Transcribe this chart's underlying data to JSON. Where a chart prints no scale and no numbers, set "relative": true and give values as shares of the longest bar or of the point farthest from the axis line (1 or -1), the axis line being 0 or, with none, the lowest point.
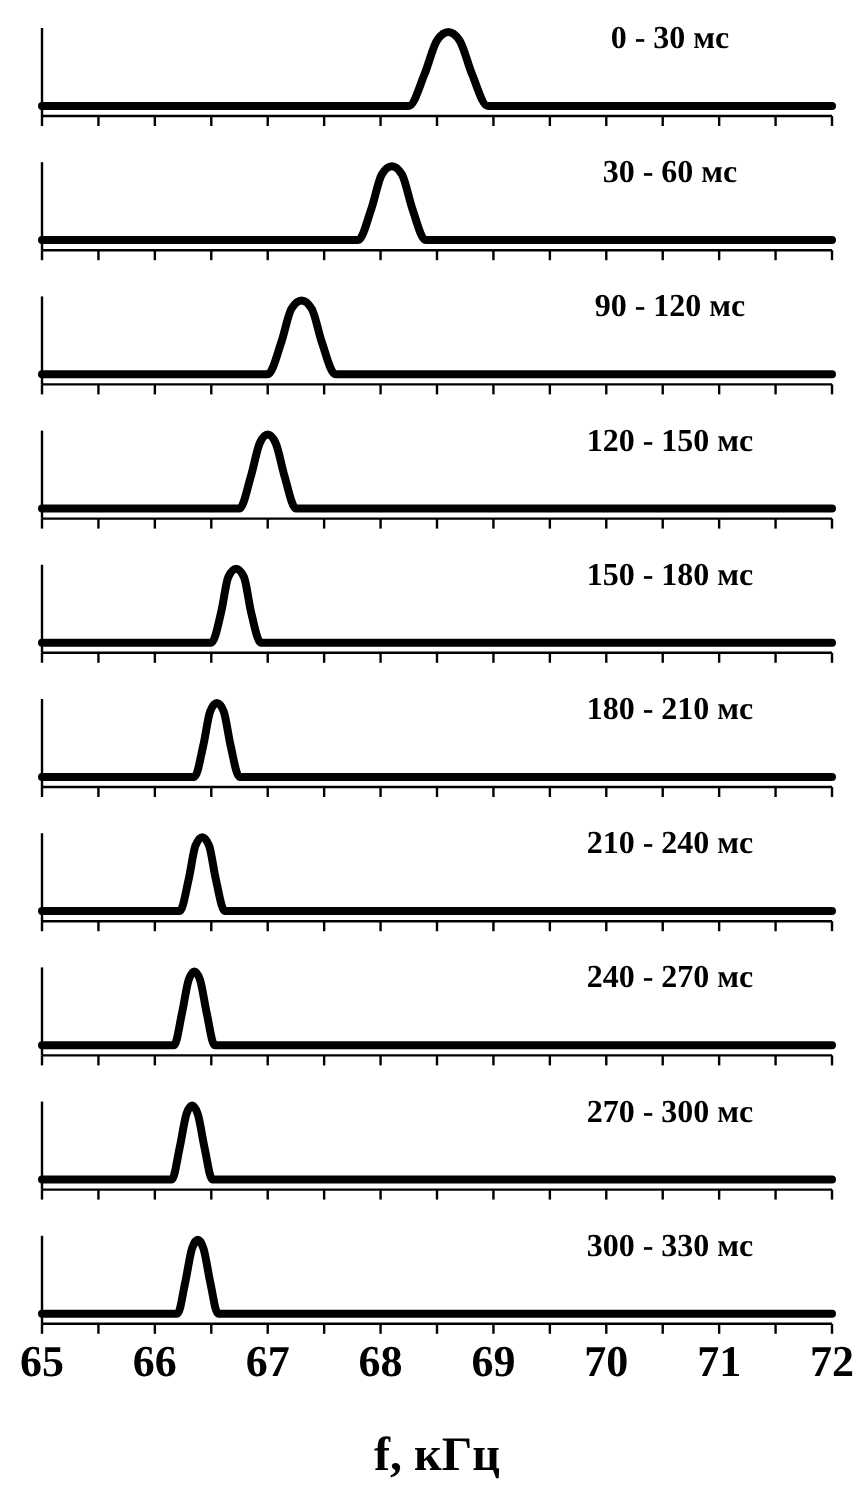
{
  "chart_data": [
    {
      "type": "line",
      "title": "0 - 30 мс",
      "relative": true,
      "xlim": [
        65,
        72
      ],
      "xticks": [
        65,
        {
          "value": 65.5,
          "label": null
        },
        66,
        {
          "value": 66.5,
          "label": null
        },
        67,
        {
          "value": 67.5,
          "label": null
        },
        68,
        {
          "value": 68.5,
          "label": null
        },
        69,
        {
          "value": 69.5,
          "label": null
        },
        70,
        {
          "value": 70.5,
          "label": null
        },
        71,
        {
          "value": 71.5,
          "label": null
        },
        72
      ],
      "tick_labels": false,
      "series": [
        {
          "color": "#000000",
          "x": [
            65,
            68.25,
            68.39,
            68.5,
            68.6,
            68.7,
            68.81,
            68.95,
            72
          ],
          "values": [
            0.12,
            0.12,
            0.5,
            0.9,
            1,
            0.9,
            0.5,
            0.12,
            0.12
          ]
        }
      ]
    },
    {
      "type": "line",
      "title": "30 - 60 мс",
      "relative": true,
      "xlim": [
        65,
        72
      ],
      "xticks": [
        65,
        {
          "value": 65.5,
          "label": null
        },
        66,
        {
          "value": 66.5,
          "label": null
        },
        67,
        {
          "value": 67.5,
          "label": null
        },
        68,
        {
          "value": 68.5,
          "label": null
        },
        69,
        {
          "value": 69.5,
          "label": null
        },
        70,
        {
          "value": 70.5,
          "label": null
        },
        71,
        {
          "value": 71.5,
          "label": null
        },
        72
      ],
      "tick_labels": false,
      "series": [
        {
          "color": "#000000",
          "x": [
            65,
            67.8,
            67.92,
            68.01,
            68.1,
            68.19,
            68.28,
            68.4,
            72
          ],
          "values": [
            0.12,
            0.12,
            0.5,
            0.9,
            1,
            0.9,
            0.5,
            0.12,
            0.12
          ]
        }
      ]
    },
    {
      "type": "line",
      "title": "90 - 120 мс",
      "relative": true,
      "xlim": [
        65,
        72
      ],
      "xticks": [
        65,
        {
          "value": 65.5,
          "label": null
        },
        66,
        {
          "value": 66.5,
          "label": null
        },
        67,
        {
          "value": 67.5,
          "label": null
        },
        68,
        {
          "value": 68.5,
          "label": null
        },
        69,
        {
          "value": 69.5,
          "label": null
        },
        70,
        {
          "value": 70.5,
          "label": null
        },
        71,
        {
          "value": 71.5,
          "label": null
        },
        72
      ],
      "tick_labels": false,
      "series": [
        {
          "color": "#000000",
          "x": [
            65,
            67.0,
            67.12,
            67.21,
            67.3,
            67.39,
            67.48,
            67.6,
            72
          ],
          "values": [
            0.12,
            0.12,
            0.5,
            0.9,
            1,
            0.9,
            0.5,
            0.12,
            0.12
          ]
        }
      ]
    },
    {
      "type": "line",
      "title": "120 - 150 мс",
      "relative": true,
      "xlim": [
        65,
        72
      ],
      "xticks": [
        65,
        {
          "value": 65.5,
          "label": null
        },
        66,
        {
          "value": 66.5,
          "label": null
        },
        67,
        {
          "value": 67.5,
          "label": null
        },
        68,
        {
          "value": 68.5,
          "label": null
        },
        69,
        {
          "value": 69.5,
          "label": null
        },
        70,
        {
          "value": 70.5,
          "label": null
        },
        71,
        {
          "value": 71.5,
          "label": null
        },
        72
      ],
      "tick_labels": false,
      "series": [
        {
          "color": "#000000",
          "x": [
            65,
            66.75,
            66.85,
            66.93,
            67.0,
            67.07,
            67.15,
            67.25,
            72
          ],
          "values": [
            0.12,
            0.12,
            0.5,
            0.9,
            1,
            0.9,
            0.5,
            0.12,
            0.12
          ]
        }
      ]
    },
    {
      "type": "line",
      "title": "150 - 180 мс",
      "relative": true,
      "xlim": [
        65,
        72
      ],
      "xticks": [
        65,
        {
          "value": 65.5,
          "label": null
        },
        66,
        {
          "value": 66.5,
          "label": null
        },
        67,
        {
          "value": 67.5,
          "label": null
        },
        68,
        {
          "value": 68.5,
          "label": null
        },
        69,
        {
          "value": 69.5,
          "label": null
        },
        70,
        {
          "value": 70.5,
          "label": null
        },
        71,
        {
          "value": 71.5,
          "label": null
        },
        72
      ],
      "tick_labels": false,
      "series": [
        {
          "color": "#000000",
          "x": [
            65,
            66.5,
            66.59,
            66.65,
            66.72,
            66.79,
            66.85,
            66.94,
            72
          ],
          "values": [
            0.12,
            0.12,
            0.5,
            0.9,
            1,
            0.9,
            0.5,
            0.12,
            0.12
          ]
        }
      ]
    },
    {
      "type": "line",
      "title": "180 - 210 мс",
      "relative": true,
      "xlim": [
        65,
        72
      ],
      "xticks": [
        65,
        {
          "value": 65.5,
          "label": null
        },
        66,
        {
          "value": 66.5,
          "label": null
        },
        67,
        {
          "value": 67.5,
          "label": null
        },
        68,
        {
          "value": 68.5,
          "label": null
        },
        69,
        {
          "value": 69.5,
          "label": null
        },
        70,
        {
          "value": 70.5,
          "label": null
        },
        71,
        {
          "value": 71.5,
          "label": null
        },
        72
      ],
      "tick_labels": false,
      "series": [
        {
          "color": "#000000",
          "x": [
            65,
            66.35,
            66.43,
            66.49,
            66.55,
            66.61,
            66.67,
            66.75,
            72
          ],
          "values": [
            0.12,
            0.12,
            0.5,
            0.9,
            1,
            0.9,
            0.5,
            0.12,
            0.12
          ]
        }
      ]
    },
    {
      "type": "line",
      "title": "210 - 240 мс",
      "relative": true,
      "xlim": [
        65,
        72
      ],
      "xticks": [
        65,
        {
          "value": 65.5,
          "label": null
        },
        66,
        {
          "value": 66.5,
          "label": null
        },
        67,
        {
          "value": 67.5,
          "label": null
        },
        68,
        {
          "value": 68.5,
          "label": null
        },
        69,
        {
          "value": 69.5,
          "label": null
        },
        70,
        {
          "value": 70.5,
          "label": null
        },
        71,
        {
          "value": 71.5,
          "label": null
        },
        72
      ],
      "tick_labels": false,
      "series": [
        {
          "color": "#000000",
          "x": [
            65,
            66.22,
            66.3,
            66.36,
            66.42,
            66.48,
            66.54,
            66.62,
            72
          ],
          "values": [
            0.12,
            0.12,
            0.5,
            0.9,
            1,
            0.9,
            0.5,
            0.12,
            0.12
          ]
        }
      ]
    },
    {
      "type": "line",
      "title": "240 - 270 мс",
      "relative": true,
      "xlim": [
        65,
        72
      ],
      "xticks": [
        65,
        {
          "value": 65.5,
          "label": null
        },
        66,
        {
          "value": 66.5,
          "label": null
        },
        67,
        {
          "value": 67.5,
          "label": null
        },
        68,
        {
          "value": 68.5,
          "label": null
        },
        69,
        {
          "value": 69.5,
          "label": null
        },
        70,
        {
          "value": 70.5,
          "label": null
        },
        71,
        {
          "value": 71.5,
          "label": null
        },
        72
      ],
      "tick_labels": false,
      "series": [
        {
          "color": "#000000",
          "x": [
            65,
            66.17,
            66.24,
            66.3,
            66.35,
            66.4,
            66.46,
            66.53,
            72
          ],
          "values": [
            0.12,
            0.12,
            0.5,
            0.9,
            1,
            0.9,
            0.5,
            0.12,
            0.12
          ]
        }
      ]
    },
    {
      "type": "line",
      "title": "270 - 300 мс",
      "relative": true,
      "xlim": [
        65,
        72
      ],
      "xticks": [
        65,
        {
          "value": 65.5,
          "label": null
        },
        66,
        {
          "value": 66.5,
          "label": null
        },
        67,
        {
          "value": 67.5,
          "label": null
        },
        68,
        {
          "value": 68.5,
          "label": null
        },
        69,
        {
          "value": 69.5,
          "label": null
        },
        70,
        {
          "value": 70.5,
          "label": null
        },
        71,
        {
          "value": 71.5,
          "label": null
        },
        72
      ],
      "tick_labels": false,
      "series": [
        {
          "color": "#000000",
          "x": [
            65,
            66.15,
            66.22,
            66.28,
            66.33,
            66.38,
            66.44,
            66.51,
            72
          ],
          "values": [
            0.12,
            0.12,
            0.5,
            0.9,
            1,
            0.9,
            0.5,
            0.12,
            0.12
          ]
        }
      ]
    },
    {
      "type": "line",
      "title": "300 - 330 мс",
      "xlabel": "f, кГц",
      "relative": true,
      "xlim": [
        65,
        72
      ],
      "xticks": [
        65,
        {
          "value": 65.5,
          "label": null
        },
        66,
        {
          "value": 66.5,
          "label": null
        },
        67,
        {
          "value": 67.5,
          "label": null
        },
        68,
        {
          "value": 68.5,
          "label": null
        },
        69,
        {
          "value": 69.5,
          "label": null
        },
        70,
        {
          "value": 70.5,
          "label": null
        },
        71,
        {
          "value": 71.5,
          "label": null
        },
        72
      ],
      "tick_labels": "x",
      "series": [
        {
          "color": "#000000",
          "x": [
            65,
            66.2,
            66.27,
            66.33,
            66.38,
            66.43,
            66.49,
            66.56,
            72
          ],
          "values": [
            0.12,
            0.12,
            0.5,
            0.9,
            1,
            0.9,
            0.5,
            0.12,
            0.12
          ]
        }
      ]
    }
  ]
}
